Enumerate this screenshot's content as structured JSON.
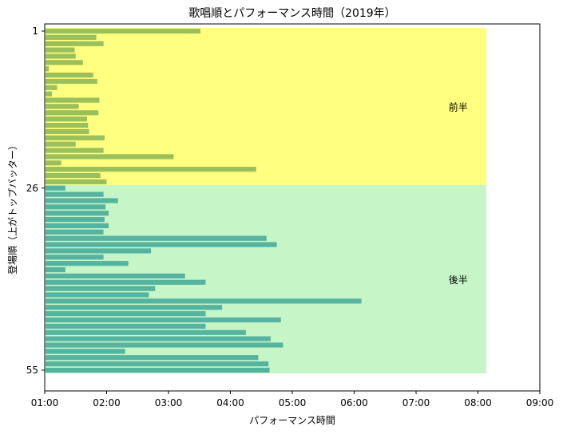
{
  "chart_data": {
    "type": "bar",
    "orientation": "horizontal",
    "title": "歌唱順とパフォーマンス時間（2019年）",
    "xlabel": "パフォーマンス時間",
    "ylabel": "登場順（上がトップバッター）",
    "xlim": [
      60,
      540
    ],
    "xticks": [
      {
        "v": 60,
        "label": "01:00"
      },
      {
        "v": 120,
        "label": "02:00"
      },
      {
        "v": 180,
        "label": "03:00"
      },
      {
        "v": 240,
        "label": "04:00"
      },
      {
        "v": 300,
        "label": "05:00"
      },
      {
        "v": 360,
        "label": "06:00"
      },
      {
        "v": 420,
        "label": "07:00"
      },
      {
        "v": 480,
        "label": "08:00"
      },
      {
        "v": 540,
        "label": "09:00"
      }
    ],
    "yticks": [
      {
        "v": 1,
        "label": "1"
      },
      {
        "v": 26,
        "label": "26"
      },
      {
        "v": 55,
        "label": "55"
      }
    ],
    "grid": false,
    "colors": {
      "first_half_bar": "#9bbf5a",
      "second_half_bar": "#55b39f",
      "first_half_band": "#ffff80",
      "second_half_band": "#c6f5c8"
    },
    "bands": [
      {
        "label": "前半",
        "from": 1,
        "to": 25,
        "xmax": 488
      },
      {
        "label": "後半",
        "from": 26,
        "to": 55,
        "xmax": 488
      }
    ],
    "order": [
      1,
      2,
      3,
      4,
      5,
      6,
      7,
      8,
      9,
      10,
      11,
      12,
      13,
      14,
      15,
      16,
      17,
      18,
      19,
      20,
      21,
      22,
      23,
      24,
      25,
      26,
      27,
      28,
      29,
      30,
      31,
      32,
      33,
      34,
      35,
      36,
      37,
      38,
      39,
      40,
      41,
      42,
      43,
      44,
      45,
      46,
      47,
      48,
      49,
      50,
      51,
      52,
      53,
      54,
      55
    ],
    "values": [
      211,
      110,
      117,
      89,
      90,
      97,
      64,
      107,
      111,
      72,
      67,
      113,
      93,
      112,
      101,
      102,
      103,
      118,
      90,
      117,
      185,
      76,
      265,
      114,
      120,
      80,
      117,
      131,
      119,
      122,
      118,
      122,
      117,
      275,
      285,
      163,
      117,
      141,
      80,
      196,
      216,
      167,
      161,
      367,
      232,
      216,
      289,
      216,
      255,
      279,
      291,
      138,
      267,
      277,
      278
    ]
  }
}
